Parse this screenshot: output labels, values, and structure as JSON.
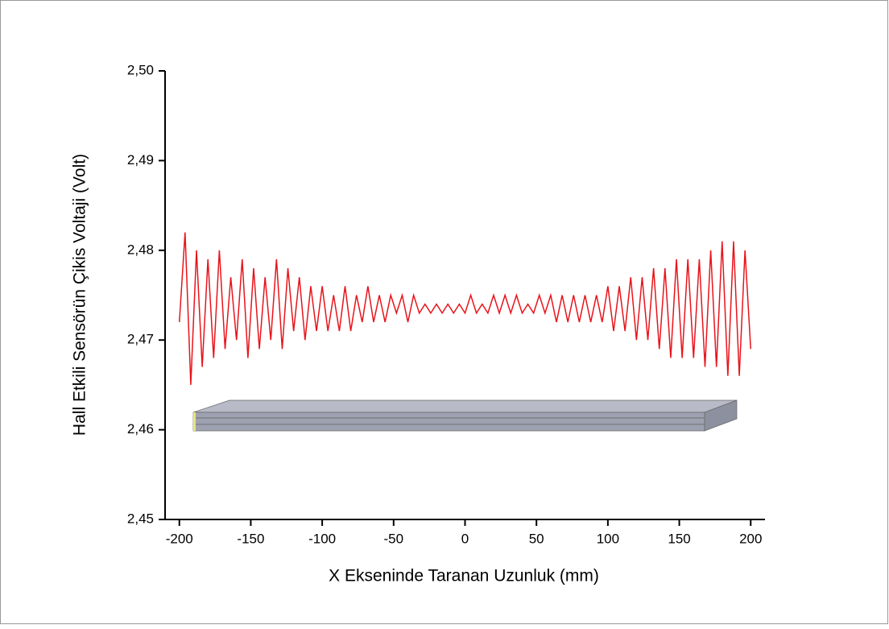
{
  "chart_data": {
    "type": "line",
    "x_label": "X Ekseninde Taranan Uzunluk (mm)",
    "y_label": "Hall Etkili Sensörün Çikis Voltaji (Volt)",
    "x": [
      -200,
      -196,
      -192,
      -188,
      -184,
      -180,
      -176,
      -172,
      -168,
      -164,
      -160,
      -156,
      -152,
      -148,
      -144,
      -140,
      -136,
      -132,
      -128,
      -124,
      -120,
      -116,
      -112,
      -108,
      -104,
      -100,
      -96,
      -92,
      -88,
      -84,
      -80,
      -76,
      -72,
      -68,
      -64,
      -60,
      -56,
      -52,
      -48,
      -44,
      -40,
      -36,
      -32,
      -28,
      -24,
      -20,
      -16,
      -12,
      -8,
      -4,
      0,
      4,
      8,
      12,
      16,
      20,
      24,
      28,
      32,
      36,
      40,
      44,
      48,
      52,
      56,
      60,
      64,
      68,
      72,
      76,
      80,
      84,
      88,
      92,
      96,
      100,
      104,
      108,
      112,
      116,
      120,
      124,
      128,
      132,
      136,
      140,
      144,
      148,
      152,
      156,
      160,
      164,
      168,
      172,
      176,
      180,
      184,
      188,
      192,
      196,
      200
    ],
    "series": [
      {
        "name": "signal",
        "color": "#e8141b",
        "values": [
          2.472,
          2.482,
          2.465,
          2.48,
          2.467,
          2.479,
          2.468,
          2.48,
          2.469,
          2.477,
          2.47,
          2.479,
          2.468,
          2.478,
          2.469,
          2.477,
          2.47,
          2.479,
          2.469,
          2.478,
          2.471,
          2.477,
          2.47,
          2.476,
          2.471,
          2.476,
          2.471,
          2.475,
          2.471,
          2.476,
          2.471,
          2.475,
          2.472,
          2.476,
          2.472,
          2.475,
          2.472,
          2.475,
          2.473,
          2.475,
          2.472,
          2.475,
          2.473,
          2.474,
          2.473,
          2.474,
          2.473,
          2.474,
          2.473,
          2.474,
          2.473,
          2.475,
          2.473,
          2.474,
          2.473,
          2.475,
          2.473,
          2.475,
          2.473,
          2.475,
          2.473,
          2.474,
          2.473,
          2.475,
          2.473,
          2.475,
          2.472,
          2.475,
          2.472,
          2.475,
          2.472,
          2.475,
          2.472,
          2.475,
          2.472,
          2.476,
          2.471,
          2.476,
          2.471,
          2.477,
          2.47,
          2.477,
          2.47,
          2.478,
          2.469,
          2.478,
          2.468,
          2.479,
          2.468,
          2.479,
          2.468,
          2.479,
          2.467,
          2.48,
          2.467,
          2.481,
          2.466,
          2.481,
          2.466,
          2.48,
          2.469
        ]
      }
    ],
    "xlim": [
      -210,
      210
    ],
    "xticks": [
      -200,
      -150,
      -100,
      -50,
      0,
      50,
      100,
      150,
      200
    ],
    "ylim": [
      2.45,
      2.5
    ],
    "yticks": [
      {
        "value": 2.45,
        "label": "2,45"
      },
      {
        "value": 2.46,
        "label": "2,46"
      },
      {
        "value": 2.47,
        "label": "2,47"
      },
      {
        "value": 2.48,
        "label": "2,48"
      },
      {
        "value": 2.49,
        "label": "2,49"
      },
      {
        "value": 2.5,
        "label": "2,50"
      }
    ]
  }
}
